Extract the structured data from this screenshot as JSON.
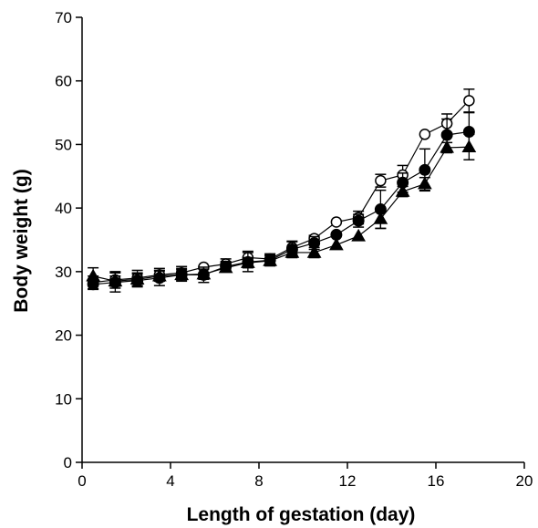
{
  "chart_data": {
    "type": "scatter",
    "title": "",
    "xlabel": "Length of gestation (day)",
    "ylabel": "Body weight (g)",
    "xlim": [
      0,
      20
    ],
    "ylim": [
      0,
      70
    ],
    "xticks": [
      "0",
      "4",
      "8",
      "12",
      "16",
      "20"
    ],
    "yticks": [
      "0",
      "10",
      "20",
      "30",
      "40",
      "50",
      "60",
      "70"
    ],
    "grid": false,
    "legend": "none",
    "lines": true,
    "error_bars": true,
    "series": [
      {
        "marker": "open-circle",
        "color": "#000000",
        "x": [
          0.5,
          1.5,
          2.5,
          3.5,
          4.5,
          5.5,
          6.5,
          7.5,
          8.5,
          9.5,
          10.5,
          11.5,
          12.5,
          13.5,
          14.5,
          15.5,
          16.5,
          17.5
        ],
        "y": [
          28.3,
          28.7,
          29.0,
          29.5,
          29.8,
          30.7,
          31.2,
          32.2,
          32.0,
          33.8,
          35.2,
          37.8,
          38.5,
          44.3,
          45.2,
          51.6,
          53.3,
          56.9
        ],
        "err": [
          1.0,
          1.3,
          1.2,
          1.0,
          1.0,
          0.0,
          0.8,
          1.0,
          0.8,
          1.0,
          0.5,
          0.0,
          1.0,
          1.0,
          1.5,
          0.0,
          1.5,
          1.8
        ]
      },
      {
        "marker": "filled-circle",
        "color": "#000000",
        "x": [
          0.5,
          1.5,
          2.5,
          3.5,
          4.5,
          5.5,
          6.5,
          7.5,
          8.5,
          9.5,
          10.5,
          11.5,
          12.5,
          13.5,
          14.5,
          15.5,
          16.5,
          17.5
        ],
        "y": [
          28.0,
          28.3,
          28.6,
          29.0,
          29.5,
          29.5,
          30.8,
          31.5,
          31.8,
          33.5,
          34.5,
          35.8,
          38.0,
          39.8,
          44.0,
          46.0,
          51.5,
          52.0
        ],
        "err": [
          0.8,
          1.5,
          1.0,
          1.2,
          1.0,
          1.2,
          0.8,
          1.5,
          0.8,
          1.2,
          1.0,
          0.0,
          1.0,
          3.0,
          1.5,
          3.3,
          2.5,
          3.0
        ]
      },
      {
        "marker": "filled-triangle",
        "color": "#000000",
        "x": [
          0.5,
          1.5,
          2.5,
          3.5,
          4.5,
          5.5,
          6.5,
          7.5,
          8.5,
          9.5,
          10.5,
          11.5,
          12.5,
          13.5,
          14.5,
          15.5,
          16.5,
          17.5
        ],
        "y": [
          29.3,
          28.5,
          28.8,
          29.3,
          29.5,
          29.6,
          30.6,
          31.4,
          31.7,
          33.0,
          33.0,
          34.2,
          35.6,
          38.3,
          42.6,
          43.8,
          49.5,
          49.6
        ],
        "err": [
          1.3,
          0.8,
          1.0,
          0.8,
          0.8,
          0.8,
          0.6,
          0.8,
          0.8,
          0.8,
          0.8,
          0.0,
          0.0,
          1.5,
          0.8,
          1.0,
          0.8,
          2.0
        ]
      }
    ]
  }
}
